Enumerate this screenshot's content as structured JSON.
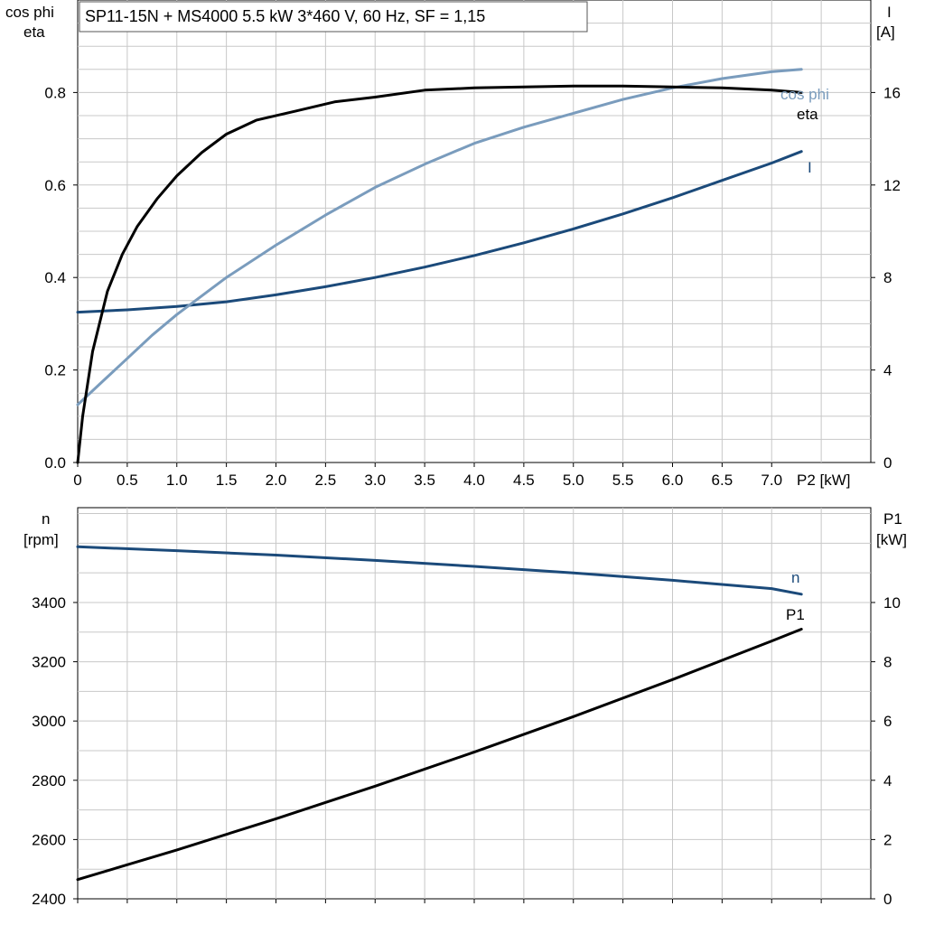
{
  "chart_data": [
    {
      "type": "line",
      "title": "SP11-15N + MS4000   5.5 kW   3*460 V, 60 Hz, SF = 1,15",
      "xlabel": "P2 [kW]",
      "ylabel_left": [
        "cos phi",
        "eta"
      ],
      "ylabel_right": [
        "I",
        "[A]"
      ],
      "xlim": [
        0,
        8.0
      ],
      "ylim_left": [
        0,
        1.0
      ],
      "ylim_right": [
        0,
        20
      ],
      "x_ticks": [
        "0",
        "0.5",
        "1.0",
        "1.5",
        "2.0",
        "2.5",
        "3.0",
        "3.5",
        "4.0",
        "4.5",
        "5.0",
        "5.5",
        "6.0",
        "6.5",
        "7.0"
      ],
      "y_ticks_left": [
        "0.0",
        "0.2",
        "0.4",
        "0.6",
        "0.8"
      ],
      "y_ticks_right": [
        "0",
        "4",
        "8",
        "12",
        "16"
      ],
      "grid": true,
      "series": [
        {
          "name": "eta",
          "axis": "left",
          "color": "#000000",
          "x": [
            0,
            0.05,
            0.15,
            0.3,
            0.45,
            0.6,
            0.8,
            1.0,
            1.25,
            1.5,
            1.8,
            2.2,
            2.6,
            3.0,
            3.5,
            4.0,
            4.5,
            5.0,
            5.5,
            6.0,
            6.5,
            7.0,
            7.3
          ],
          "y": [
            0.0,
            0.1,
            0.24,
            0.37,
            0.45,
            0.51,
            0.57,
            0.62,
            0.67,
            0.71,
            0.74,
            0.76,
            0.78,
            0.79,
            0.805,
            0.81,
            0.812,
            0.814,
            0.814,
            0.812,
            0.81,
            0.805,
            0.8
          ]
        },
        {
          "name": "cos phi",
          "axis": "left",
          "color": "#7a9cbd",
          "x": [
            0,
            0.25,
            0.5,
            0.75,
            1.0,
            1.25,
            1.5,
            2.0,
            2.5,
            3.0,
            3.5,
            4.0,
            4.5,
            5.0,
            5.5,
            6.0,
            6.5,
            7.0,
            7.3
          ],
          "y": [
            0.125,
            0.175,
            0.225,
            0.275,
            0.32,
            0.36,
            0.4,
            0.47,
            0.535,
            0.595,
            0.645,
            0.69,
            0.725,
            0.755,
            0.785,
            0.81,
            0.83,
            0.845,
            0.85
          ]
        },
        {
          "name": "I",
          "axis": "right",
          "color": "#1b4a7a",
          "x": [
            0,
            0.5,
            1.0,
            1.5,
            2.0,
            2.5,
            3.0,
            3.5,
            4.0,
            4.5,
            5.0,
            5.5,
            6.0,
            6.5,
            7.0,
            7.3
          ],
          "y": [
            6.5,
            6.6,
            6.75,
            6.95,
            7.25,
            7.6,
            8.0,
            8.45,
            8.95,
            9.5,
            10.1,
            10.75,
            11.45,
            12.2,
            12.95,
            13.45
          ]
        }
      ]
    },
    {
      "type": "line",
      "xlabel": "",
      "ylabel_left": [
        "n",
        "[rpm]"
      ],
      "ylabel_right": [
        "P1",
        "[kW]"
      ],
      "xlim": [
        0,
        8.0
      ],
      "ylim_left": [
        2400,
        3720
      ],
      "ylim_right": [
        0,
        13.2
      ],
      "y_ticks_left": [
        "2400",
        "2600",
        "2800",
        "3000",
        "3200",
        "3400"
      ],
      "y_ticks_right": [
        "0",
        "2",
        "4",
        "6",
        "8",
        "10"
      ],
      "grid": true,
      "series": [
        {
          "name": "n",
          "axis": "left",
          "color": "#1b4a7a",
          "x": [
            0,
            1.0,
            2.0,
            3.0,
            4.0,
            5.0,
            6.0,
            7.0,
            7.3
          ],
          "y": [
            3588,
            3575,
            3560,
            3542,
            3522,
            3500,
            3475,
            3447,
            3428
          ]
        },
        {
          "name": "P1",
          "axis": "right",
          "color": "#000000",
          "x": [
            0,
            1.0,
            2.0,
            3.0,
            4.0,
            5.0,
            6.0,
            7.0,
            7.3
          ],
          "y": [
            0.65,
            1.65,
            2.7,
            3.8,
            4.95,
            6.15,
            7.4,
            8.7,
            9.1
          ]
        }
      ]
    }
  ]
}
